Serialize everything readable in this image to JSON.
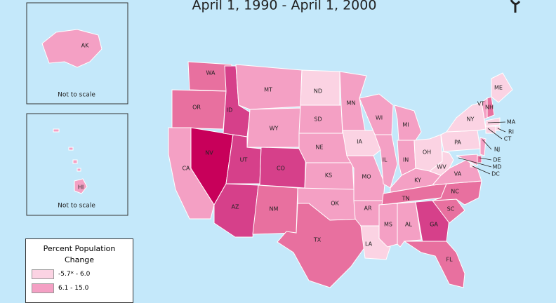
{
  "title": "April 1, 1990 - April 1, 2000",
  "insets": [
    {
      "label": "AK",
      "note": "Not to scale",
      "color": "#f4a0c4"
    },
    {
      "label": "HI",
      "note": "Not to scale",
      "color": "#f4a0c4"
    }
  ],
  "legend": {
    "title": "Percent Population Change",
    "items": [
      {
        "label": "-5.7* - 6.0",
        "color": "#fbd3e3"
      },
      {
        "label": "6.1 - 15.0",
        "color": "#f4a0c4"
      }
    ]
  },
  "states": [
    {
      "label": "WA",
      "color": "#e8709f"
    },
    {
      "label": "OR",
      "color": "#e8709f"
    },
    {
      "label": "CA",
      "color": "#f4a0c4"
    },
    {
      "label": "NV",
      "color": "#c8005a"
    },
    {
      "label": "ID",
      "color": "#d6408a"
    },
    {
      "label": "MT",
      "color": "#f4a0c4"
    },
    {
      "label": "WY",
      "color": "#f4a0c4"
    },
    {
      "label": "UT",
      "color": "#d6408a"
    },
    {
      "label": "CO",
      "color": "#d6408a"
    },
    {
      "label": "AZ",
      "color": "#d6408a"
    },
    {
      "label": "NM",
      "color": "#e8709f"
    },
    {
      "label": "ND",
      "color": "#fbd3e3"
    },
    {
      "label": "SD",
      "color": "#f4a0c4"
    },
    {
      "label": "NE",
      "color": "#f4a0c4"
    },
    {
      "label": "KS",
      "color": "#f4a0c4"
    },
    {
      "label": "OK",
      "color": "#f4a0c4"
    },
    {
      "label": "TX",
      "color": "#e8709f"
    },
    {
      "label": "MN",
      "color": "#f4a0c4"
    },
    {
      "label": "IA",
      "color": "#fbd3e3"
    },
    {
      "label": "MO",
      "color": "#f4a0c4"
    },
    {
      "label": "AR",
      "color": "#f4a0c4"
    },
    {
      "label": "LA",
      "color": "#fbd3e3"
    },
    {
      "label": "WI",
      "color": "#f4a0c4"
    },
    {
      "label": "IL",
      "color": "#f4a0c4"
    },
    {
      "label": "MI",
      "color": "#f4a0c4"
    },
    {
      "label": "IN",
      "color": "#f4a0c4"
    },
    {
      "label": "OH",
      "color": "#fbd3e3"
    },
    {
      "label": "KY",
      "color": "#f4a0c4"
    },
    {
      "label": "TN",
      "color": "#e8709f"
    },
    {
      "label": "MS",
      "color": "#f4a0c4"
    },
    {
      "label": "AL",
      "color": "#f4a0c4"
    },
    {
      "label": "GA",
      "color": "#d6408a"
    },
    {
      "label": "FL",
      "color": "#e8709f"
    },
    {
      "label": "SC",
      "color": "#e8709f"
    },
    {
      "label": "NC",
      "color": "#e8709f"
    },
    {
      "label": "VA",
      "color": "#f4a0c4"
    },
    {
      "label": "WV",
      "color": "#fbd3e3"
    },
    {
      "label": "PA",
      "color": "#fbd3e3"
    },
    {
      "label": "NY",
      "color": "#fbd3e3"
    },
    {
      "label": "ME",
      "color": "#fbd3e3"
    },
    {
      "label": "VT",
      "color": "#f4a0c4"
    },
    {
      "label": "NH",
      "color": "#e8709f"
    },
    {
      "label": "MA",
      "color": "#fbd3e3"
    },
    {
      "label": "RI",
      "color": "#fbd3e3"
    },
    {
      "label": "CT",
      "color": "#fbd3e3"
    },
    {
      "label": "NJ",
      "color": "#f4a0c4"
    },
    {
      "label": "DE",
      "color": "#e8709f"
    },
    {
      "label": "MD",
      "color": "#f4a0c4"
    },
    {
      "label": "DC",
      "color": "#fbd3e3"
    }
  ]
}
